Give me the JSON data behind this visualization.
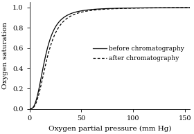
{
  "title": "",
  "xlabel": "Oxygen partial pressure (mm Hg)",
  "ylabel": "Oxygen saturation",
  "xlim": [
    0,
    155
  ],
  "ylim": [
    0.0,
    1.05
  ],
  "xticks": [
    0,
    50,
    100,
    150
  ],
  "yticks": [
    0.0,
    0.2,
    0.4,
    0.6,
    0.8,
    1.0
  ],
  "curve1": {
    "label": "before chromatography",
    "linestyle": "solid",
    "color": "#000000",
    "n": 2.8,
    "p50": 15
  },
  "curve2": {
    "label": "after chromatography",
    "linestyle": "dashed",
    "color": "#000000",
    "n": 2.8,
    "p50": 17
  },
  "legend_fontsize": 6.5,
  "axis_fontsize": 7.5,
  "tick_fontsize": 7,
  "background_color": "#ffffff",
  "linewidth": 0.9,
  "dashes": [
    3,
    2
  ]
}
